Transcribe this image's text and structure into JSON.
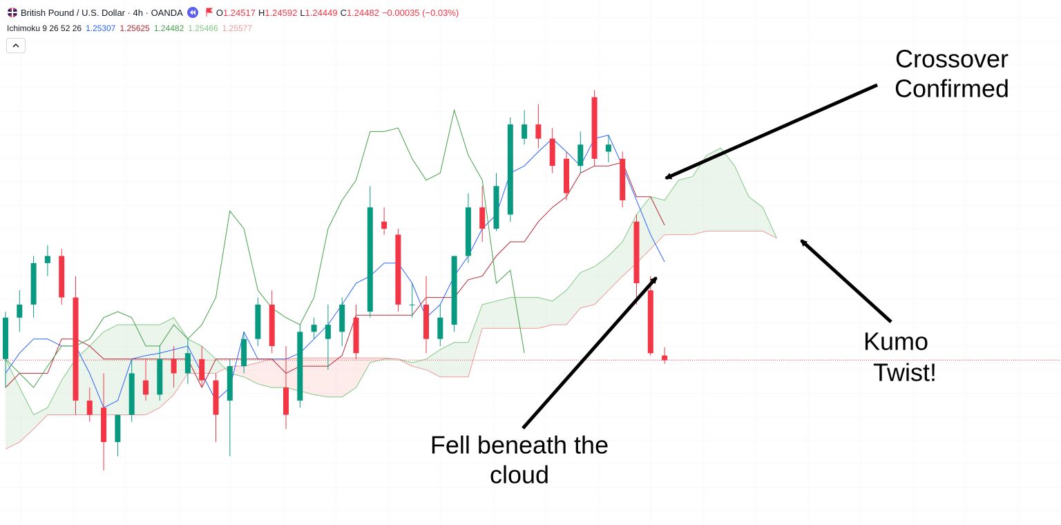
{
  "chart_data": {
    "type": "candlestick",
    "title": "British Pound / U.S. Dollar · 4h · OANDA",
    "ohlc": [
      {
        "label": "O",
        "value": 1.24517
      },
      {
        "label": "H",
        "value": 1.24592
      },
      {
        "label": "L",
        "value": 1.24449
      },
      {
        "label": "C",
        "value": 1.24482
      }
    ],
    "change": "−0.00035 (−0.03%)",
    "last_price_color": "#f23645",
    "indicator": {
      "name": "Ichimoku 9 26 52 26",
      "values": [
        1.25307,
        1.25625,
        1.24482,
        1.25466,
        1.25577
      ],
      "colors": [
        "#2962ff",
        "#b22833",
        "#43a047",
        "#81c784",
        "#ef9a9a"
      ]
    },
    "ylim": [
      1.2309,
      1.2752
    ],
    "candles": {
      "up_color": "#089981",
      "down_color": "#f23645",
      "open": [
        1.2449,
        1.2484,
        1.2495,
        1.253,
        1.2536,
        1.2501,
        1.2414,
        1.2408,
        1.2379,
        1.2402,
        1.2431,
        1.2419,
        1.2449,
        1.2437,
        1.2449,
        1.2431,
        1.2414,
        1.2443,
        1.2466,
        1.2495,
        1.2425,
        1.2414,
        1.2472,
        1.2466,
        1.2472,
        1.2484,
        1.2489,
        1.2565,
        1.2554,
        1.2495,
        1.2495,
        1.2466,
        1.2478,
        1.2536,
        1.2577,
        1.2559,
        1.2571,
        1.2635,
        1.2647,
        1.2635,
        1.2618,
        1.2612,
        1.267,
        1.2624,
        1.2618,
        1.2565,
        1.2507,
        1.2452
      ],
      "high": [
        1.2489,
        1.2507,
        1.2536,
        1.2545,
        1.2542,
        1.2519,
        1.2425,
        1.2437,
        1.239,
        1.2449,
        1.2449,
        1.246,
        1.246,
        1.2466,
        1.246,
        1.2437,
        1.2449,
        1.2472,
        1.2501,
        1.2507,
        1.246,
        1.2478,
        1.2484,
        1.2495,
        1.2501,
        1.2495,
        1.2595,
        1.2577,
        1.2559,
        1.2513,
        1.2519,
        1.2495,
        1.2536,
        1.2589,
        1.2595,
        1.2606,
        1.2653,
        1.2659,
        1.2664,
        1.2644,
        1.2624,
        1.2641,
        1.2676,
        1.2638,
        1.2624,
        1.2571,
        1.2519,
        1.2459
      ],
      "low": [
        1.2425,
        1.2472,
        1.2484,
        1.2519,
        1.2495,
        1.2402,
        1.2396,
        1.2355,
        1.2367,
        1.2396,
        1.2414,
        1.2414,
        1.2425,
        1.2428,
        1.2425,
        1.2379,
        1.2367,
        1.2437,
        1.246,
        1.2454,
        1.239,
        1.2408,
        1.2466,
        1.244,
        1.246,
        1.2449,
        1.2484,
        1.2554,
        1.2489,
        1.2484,
        1.2454,
        1.246,
        1.2472,
        1.253,
        1.2548,
        1.2557,
        1.2565,
        1.263,
        1.2627,
        1.2606,
        1.2583,
        1.2606,
        1.2612,
        1.2615,
        1.2577,
        1.2495,
        1.2452,
        1.2445
      ],
      "close": [
        1.2484,
        1.2495,
        1.253,
        1.2536,
        1.2501,
        1.2414,
        1.2402,
        1.2379,
        1.2402,
        1.2437,
        1.2419,
        1.2449,
        1.2437,
        1.2454,
        1.2431,
        1.2402,
        1.2443,
        1.2466,
        1.2495,
        1.246,
        1.2402,
        1.2472,
        1.2478,
        1.2478,
        1.2495,
        1.2454,
        1.2577,
        1.2559,
        1.2495,
        1.2495,
        1.2466,
        1.2484,
        1.2536,
        1.2577,
        1.2559,
        1.2595,
        1.2647,
        1.2647,
        1.2635,
        1.2612,
        1.2589,
        1.263,
        1.2618,
        1.263,
        1.2583,
        1.2513,
        1.2454,
        1.2448
      ]
    },
    "series": [
      {
        "color": "#2962ff",
        "values": [
          1.2437,
          1.2454,
          1.2466,
          1.2466,
          1.246,
          1.246,
          1.2437,
          1.2408,
          1.2414,
          1.2449,
          1.2452,
          1.2454,
          1.2457,
          1.246,
          1.2437,
          1.2414,
          1.2425,
          1.2472,
          1.2449,
          1.2449,
          1.2449,
          1.2454,
          1.2466,
          1.2478,
          1.2495,
          1.2513,
          1.2519,
          1.253,
          1.253,
          1.2513,
          1.2484,
          1.2495,
          1.2519,
          1.2536,
          1.2559,
          1.2571,
          1.2606,
          1.2612,
          1.2624,
          1.2635,
          1.2624,
          1.2612,
          1.2635,
          1.2638,
          1.2612,
          1.2583,
          1.2554,
          1.2531
        ]
      },
      {
        "color": "#b22833",
        "values": [
          1.2425,
          1.2437,
          1.2437,
          1.2437,
          1.2466,
          1.2466,
          1.246,
          1.2449,
          1.2449,
          1.2449,
          1.2449,
          1.2449,
          1.2449,
          1.2449,
          1.2425,
          1.2449,
          1.2449,
          1.2449,
          1.2449,
          1.2449,
          1.2437,
          1.2443,
          1.2443,
          1.2443,
          1.2452,
          1.2486,
          1.2486,
          1.2486,
          1.2486,
          1.2486,
          1.2501,
          1.2501,
          1.2501,
          1.2516,
          1.2519,
          1.2536,
          1.2548,
          1.2548,
          1.2565,
          1.2577,
          1.2586,
          1.2606,
          1.2612,
          1.2612,
          1.2615,
          1.2586,
          1.2586,
          1.2562
        ]
      },
      {
        "color": "#43a047",
        "values": [
          1.2449,
          1.2437,
          1.2425,
          1.2443,
          1.246,
          1.246,
          1.2466,
          1.2484,
          1.2489,
          1.2484,
          1.246,
          1.246,
          1.2478,
          1.2466,
          1.2478,
          1.2501,
          1.2574,
          1.2559,
          1.2507,
          1.2492,
          1.2484,
          1.2478,
          1.2501,
          1.2559,
          1.2583,
          1.26,
          1.2641,
          1.2641,
          1.2644,
          1.2618,
          1.26,
          1.2606,
          1.2659,
          1.2621,
          1.26,
          1.2513,
          1.2524,
          1.2454
        ]
      }
    ],
    "cloud": {
      "up_color": "#43a047",
      "down_color": "#f44336",
      "span_a": {
        "color": "#81c784",
        "values": [
          1.2449,
          1.2425,
          1.2402,
          1.2408,
          1.2431,
          1.2449,
          1.246,
          1.2472,
          1.2478,
          1.2478,
          1.2478,
          1.2478,
          1.2484,
          1.2466,
          1.246,
          1.2449,
          1.2437,
          1.2434,
          1.2428,
          1.2425,
          1.2425,
          1.2422,
          1.2419,
          1.2417,
          1.2417,
          1.2425,
          1.2446,
          1.2449,
          1.2449,
          1.2446,
          1.2449,
          1.2457,
          1.2463,
          1.2463,
          1.2495,
          1.2498,
          1.2501,
          1.2501,
          1.2501,
          1.2498,
          1.2507,
          1.2522,
          1.2527,
          1.2536,
          1.2548,
          1.2571,
          1.2586,
          1.2583,
          1.26,
          1.2603,
          1.2621,
          1.2627,
          1.2612,
          1.2586,
          1.2577,
          1.2551
        ]
      },
      "span_b": {
        "color": "#ef9a9a",
        "values": [
          1.2373,
          1.2379,
          1.239,
          1.2402,
          1.2402,
          1.2402,
          1.2402,
          1.2402,
          1.2402,
          1.2402,
          1.2402,
          1.2408,
          1.2419,
          1.2437,
          1.2437,
          1.2437,
          1.2443,
          1.2443,
          1.2446,
          1.2449,
          1.2449,
          1.245,
          1.245,
          1.245,
          1.245,
          1.245,
          1.245,
          1.245,
          1.2449,
          1.2443,
          1.244,
          1.2434,
          1.2434,
          1.2434,
          1.2475,
          1.2475,
          1.2475,
          1.2475,
          1.2475,
          1.2478,
          1.2478,
          1.2492,
          1.2495,
          1.2507,
          1.2519,
          1.253,
          1.2542,
          1.2554,
          1.2554,
          1.2554,
          1.2557,
          1.2557,
          1.2557,
          1.2557,
          1.2557,
          1.2551
        ]
      }
    },
    "annotations": [
      {
        "lines": [
          "Crossover",
          "Confirmed"
        ]
      },
      {
        "lines": [
          "Kumo",
          "Twist!"
        ]
      },
      {
        "lines": [
          "Fell beneath the",
          "cloud"
        ]
      }
    ]
  }
}
